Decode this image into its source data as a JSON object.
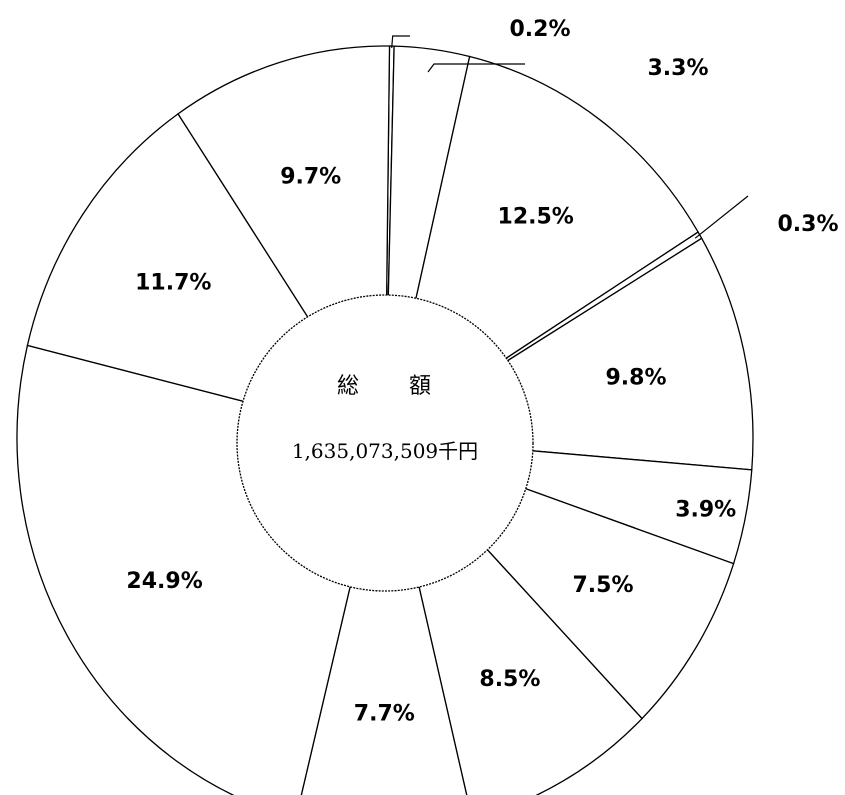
{
  "chart_data": {
    "type": "pie",
    "style": "donut",
    "center": {
      "title": "総　　額",
      "total": "1,635,073,509千円"
    },
    "slices": [
      {
        "label": "0.2%",
        "value": 0.2
      },
      {
        "label": "3.3%",
        "value": 3.3
      },
      {
        "label": "12.5%",
        "value": 12.5
      },
      {
        "label": "0.3%",
        "value": 0.3
      },
      {
        "label": "9.8%",
        "value": 9.8
      },
      {
        "label": "3.9%",
        "value": 3.9
      },
      {
        "label": "7.5%",
        "value": 7.5
      },
      {
        "label": "8.5%",
        "value": 8.5
      },
      {
        "label": "7.7%",
        "value": 7.7
      },
      {
        "label": "24.9%",
        "value": 24.9
      },
      {
        "label": "11.7%",
        "value": 11.7
      },
      {
        "label": "9.7%",
        "value": 9.7
      }
    ],
    "colors": {
      "fill": "#ffffff",
      "stroke": "#000000"
    }
  }
}
